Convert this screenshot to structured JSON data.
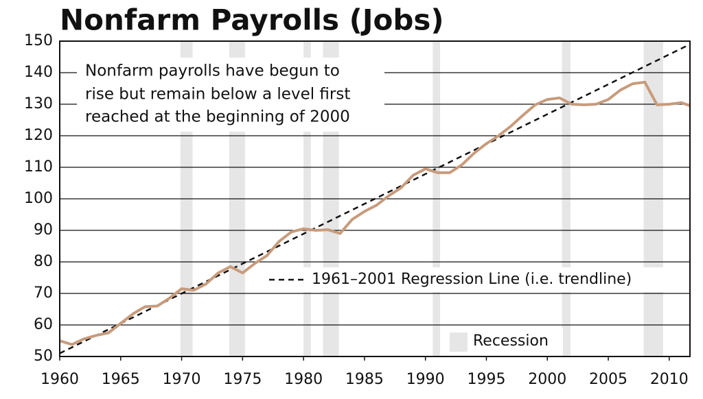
{
  "chart_data": {
    "type": "line",
    "title": "Nonfarm Payrolls (Jobs)",
    "x": [
      1960,
      1961,
      1962,
      1963,
      1964,
      1965,
      1966,
      1967,
      1968,
      1969,
      1970,
      1971,
      1972,
      1973,
      1974,
      1975,
      1976,
      1977,
      1978,
      1979,
      1980,
      1981,
      1982,
      1983,
      1984,
      1985,
      1986,
      1987,
      1988,
      1989,
      1990,
      1991,
      1992,
      1993,
      1994,
      1995,
      1996,
      1997,
      1998,
      1999,
      2000,
      2001,
      2002,
      2003,
      2004,
      2005,
      2006,
      2007,
      2008,
      2009,
      2010,
      2011,
      2011.7
    ],
    "values": [
      55,
      53.8,
      55.6,
      56.7,
      57.5,
      60.5,
      63.5,
      65.8,
      66,
      68.5,
      71.5,
      71,
      73,
      76.5,
      78.5,
      76.5,
      79.5,
      82,
      86.5,
      89.5,
      90.5,
      90,
      90.2,
      89,
      93.5,
      96,
      98,
      101,
      103.5,
      107.5,
      109.5,
      108.3,
      108.3,
      110.8,
      114.5,
      117.5,
      120,
      123,
      126.5,
      129.8,
      131.5,
      132,
      130,
      129.8,
      130,
      131.5,
      134.5,
      136.5,
      137,
      129.8,
      130,
      130.5,
      129.5
    ],
    "color": "#c89b7b",
    "xlim": [
      1960,
      2011.7
    ],
    "ylim": [
      50,
      150
    ],
    "xticks": [
      1960,
      1965,
      1970,
      1975,
      1980,
      1985,
      1990,
      1995,
      2000,
      2005,
      2010
    ],
    "yticks": [
      50,
      60,
      70,
      80,
      90,
      100,
      110,
      120,
      130,
      140,
      150
    ],
    "grid": true,
    "recessions": [
      [
        1969.9,
        1970.9
      ],
      [
        1973.9,
        1975.2
      ],
      [
        1980.0,
        1980.6
      ],
      [
        1981.6,
        1982.9
      ],
      [
        1990.6,
        1991.2
      ],
      [
        2001.2,
        2001.9
      ],
      [
        2007.9,
        2009.5
      ]
    ],
    "recession_color": "#e6e6e6",
    "recession_label": "Recession",
    "trendline": {
      "name": "1961–2001 Regression Line (i.e. trendline)",
      "x": [
        1960,
        2011.7
      ],
      "values": [
        51,
        149
      ]
    },
    "annotation": [
      "Nonfarm payrolls have begun to",
      "rise but remain below a level first",
      "reached at the beginning of 2000"
    ]
  }
}
